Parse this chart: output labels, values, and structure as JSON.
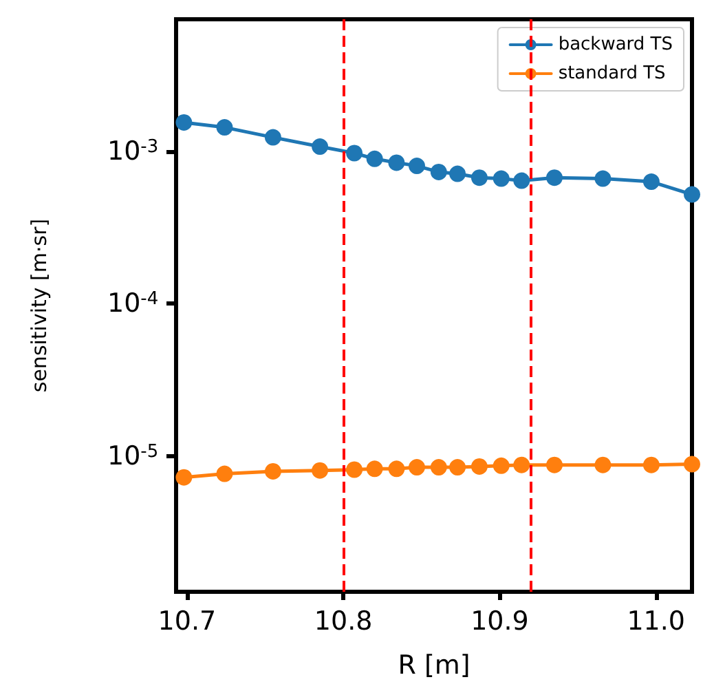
{
  "chart_data": {
    "type": "line",
    "xlabel": "R [m]",
    "ylabel": "sensitivity [m·sr]",
    "x": [
      10.698,
      10.724,
      10.755,
      10.785,
      10.807,
      10.82,
      10.834,
      10.847,
      10.861,
      10.873,
      10.887,
      10.901,
      10.914,
      10.935,
      10.966,
      10.997,
      11.023
    ],
    "series": [
      {
        "name": "backward TS",
        "color": "#1f77b4",
        "values": [
          0.00154,
          0.00143,
          0.00123,
          0.00107,
          0.00097,
          0.00089,
          0.00084,
          0.0008,
          0.00073,
          0.00071,
          0.00067,
          0.00066,
          0.00064,
          0.00067,
          0.00066,
          0.00063,
          0.00052
        ]
      },
      {
        "name": "standard TS",
        "color": "#ff7f0e",
        "values": [
          7.3e-06,
          7.7e-06,
          8e-06,
          8.1e-06,
          8.2e-06,
          8.3e-06,
          8.3e-06,
          8.5e-06,
          8.5e-06,
          8.5e-06,
          8.6e-06,
          8.7e-06,
          8.8e-06,
          8.8e-06,
          8.8e-06,
          8.8e-06,
          8.9e-06
        ]
      }
    ],
    "xlim": [
      10.693,
      11.023
    ],
    "xticks": [
      {
        "value": 10.7,
        "label": "10.7"
      },
      {
        "value": 10.8,
        "label": "10.8"
      },
      {
        "value": 10.9,
        "label": "10.9"
      },
      {
        "value": 11.0,
        "label": "11.0"
      }
    ],
    "ylim": [
      1.3e-06,
      0.0073
    ],
    "yticks": [
      {
        "value": 1e-05,
        "label": "10$^{-5}$"
      },
      {
        "value": 0.0001,
        "label": "10$^{-4}$"
      },
      {
        "value": 0.001,
        "label": "10$^{-3}$"
      }
    ],
    "log": "y",
    "grid": false,
    "legend": "top right",
    "marker": "circle",
    "line_style": "solid",
    "ref_lines": [
      {
        "axis": "x",
        "value": 10.8,
        "color": "#ff0000",
        "line_style": "dashed"
      },
      {
        "axis": "x",
        "value": 10.92,
        "color": "#ff0000",
        "line_style": "dashed"
      }
    ]
  }
}
